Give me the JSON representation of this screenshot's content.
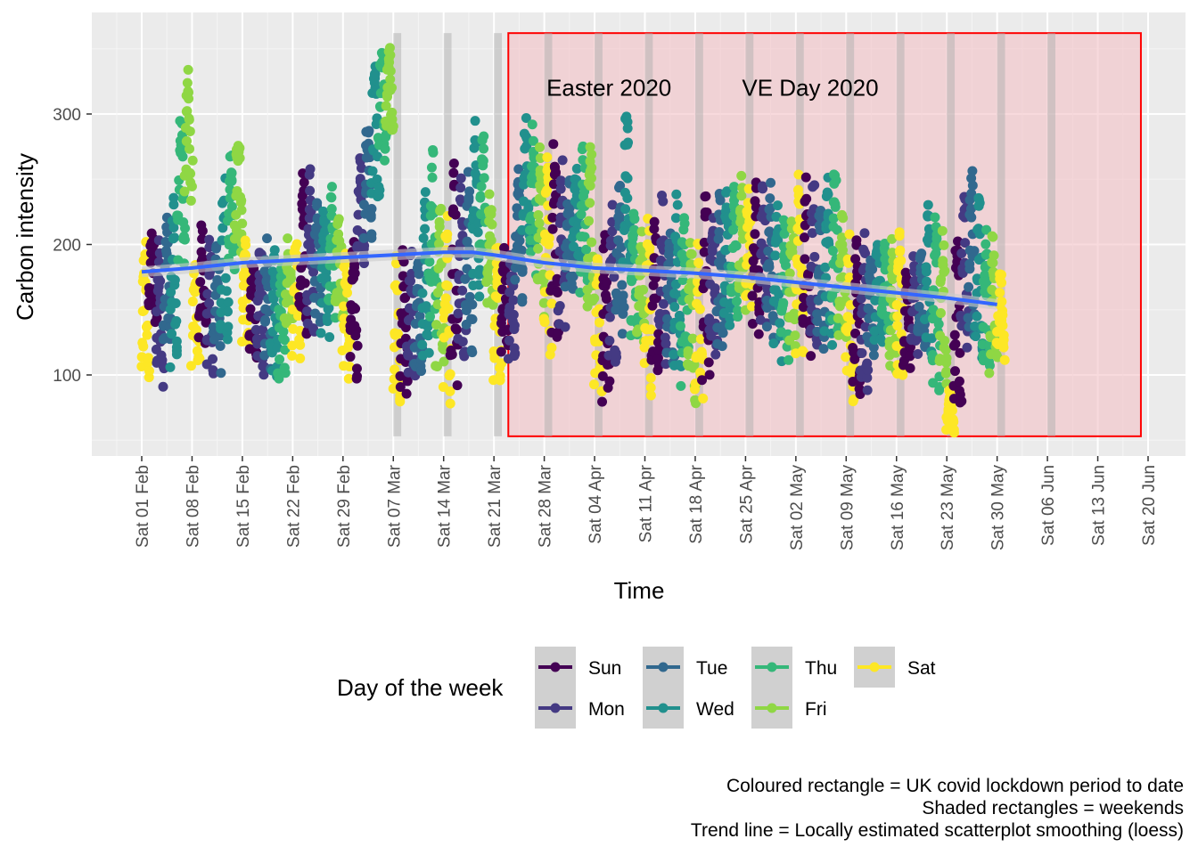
{
  "chart_data": {
    "type": "scatter",
    "xlabel": "Time",
    "ylabel": "Carbon intensity",
    "xlim": [
      "2020-01-27",
      "2020-06-21"
    ],
    "ylim": [
      40,
      370
    ],
    "y_ticks": [
      100,
      200,
      300
    ],
    "x_ticks": [
      {
        "date": "2020-02-01",
        "label": "Sat 01 Feb"
      },
      {
        "date": "2020-02-08",
        "label": "Sat 08 Feb"
      },
      {
        "date": "2020-02-15",
        "label": "Sat 15 Feb"
      },
      {
        "date": "2020-02-22",
        "label": "Sat 22 Feb"
      },
      {
        "date": "2020-02-29",
        "label": "Sat 29 Feb"
      },
      {
        "date": "2020-03-07",
        "label": "Sat 07 Mar"
      },
      {
        "date": "2020-03-14",
        "label": "Sat 14 Mar"
      },
      {
        "date": "2020-03-21",
        "label": "Sat 21 Mar"
      },
      {
        "date": "2020-03-28",
        "label": "Sat 28 Mar"
      },
      {
        "date": "2020-04-04",
        "label": "Sat 04 Apr"
      },
      {
        "date": "2020-04-11",
        "label": "Sat 11 Apr"
      },
      {
        "date": "2020-04-18",
        "label": "Sat 18 Apr"
      },
      {
        "date": "2020-04-25",
        "label": "Sat 25 Apr"
      },
      {
        "date": "2020-05-02",
        "label": "Sat 02 May"
      },
      {
        "date": "2020-05-09",
        "label": "Sat 09 May"
      },
      {
        "date": "2020-05-16",
        "label": "Sat 16 May"
      },
      {
        "date": "2020-05-23",
        "label": "Sat 23 May"
      },
      {
        "date": "2020-05-30",
        "label": "Sat 30 May"
      },
      {
        "date": "2020-06-06",
        "label": "Sat 06 Jun"
      },
      {
        "date": "2020-06-13",
        "label": "Sat 13 Jun"
      },
      {
        "date": "2020-06-20",
        "label": "Sat 20 Jun"
      }
    ],
    "grid": true,
    "lockdown_period": {
      "start": "2020-03-23",
      "end": "2020-06-19",
      "ymin": 53,
      "ymax": 362,
      "fill": "#f4c2c6",
      "border": "#ff0000"
    },
    "weekend_shading": {
      "ymin": 53,
      "ymax": 362,
      "color": "#b0b0b0",
      "starts": [
        "2020-03-07",
        "2020-03-14",
        "2020-03-21",
        "2020-03-28",
        "2020-04-04",
        "2020-04-11",
        "2020-04-18",
        "2020-04-25",
        "2020-05-02",
        "2020-05-09",
        "2020-05-16",
        "2020-05-23",
        "2020-05-30",
        "2020-06-06"
      ]
    },
    "annotations": [
      {
        "text": "Easter 2020",
        "date": "2020-04-06",
        "y": 320
      },
      {
        "text": "VE Day 2020",
        "date": "2020-05-04",
        "y": 320
      }
    ],
    "series": [
      {
        "name": "Sun",
        "color": "#440154"
      },
      {
        "name": "Mon",
        "color": "#443a83"
      },
      {
        "name": "Tue",
        "color": "#31688e"
      },
      {
        "name": "Wed",
        "color": "#21908d"
      },
      {
        "name": "Thu",
        "color": "#35b779"
      },
      {
        "name": "Fri",
        "color": "#8fd744"
      },
      {
        "name": "Sat",
        "color": "#fde725"
      }
    ],
    "daily_ranges": {
      "start": "2020-02-01",
      "comment_free": true,
      "ranges": [
        [
          95,
          205
        ],
        [
          140,
          215
        ],
        [
          90,
          210
        ],
        [
          110,
          225
        ],
        [
          100,
          250
        ],
        [
          180,
          310
        ],
        [
          230,
          340
        ],
        [
          100,
          195
        ],
        [
          110,
          225
        ],
        [
          100,
          210
        ],
        [
          100,
          205
        ],
        [
          110,
          265
        ],
        [
          175,
          275
        ],
        [
          190,
          290
        ],
        [
          120,
          205
        ],
        [
          110,
          200
        ],
        [
          95,
          205
        ],
        [
          95,
          215
        ],
        [
          95,
          200
        ],
        [
          90,
          190
        ],
        [
          130,
          210
        ],
        [
          110,
          210
        ],
        [
          120,
          260
        ],
        [
          130,
          265
        ],
        [
          140,
          240
        ],
        [
          120,
          245
        ],
        [
          140,
          245
        ],
        [
          140,
          230
        ],
        [
          95,
          205
        ],
        [
          95,
          205
        ],
        [
          170,
          280
        ],
        [
          200,
          295
        ],
        [
          230,
          355
        ],
        [
          260,
          360
        ],
        [
          285,
          355
        ],
        [
          75,
          200
        ],
        [
          80,
          205
        ],
        [
          85,
          200
        ],
        [
          90,
          195
        ],
        [
          100,
          250
        ],
        [
          120,
          280
        ],
        [
          95,
          250
        ],
        [
          70,
          240
        ],
        [
          80,
          285
        ],
        [
          100,
          255
        ],
        [
          110,
          260
        ],
        [
          150,
          300
        ],
        [
          170,
          300
        ],
        [
          150,
          240
        ],
        [
          85,
          200
        ],
        [
          110,
          205
        ],
        [
          110,
          200
        ],
        [
          150,
          260
        ],
        [
          190,
          305
        ],
        [
          170,
          295
        ],
        [
          140,
          290
        ],
        [
          110,
          290
        ],
        [
          120,
          290
        ],
        [
          130,
          275
        ],
        [
          160,
          250
        ],
        [
          180,
          260
        ],
        [
          150,
          285
        ],
        [
          130,
          285
        ],
        [
          80,
          210
        ],
        [
          75,
          215
        ],
        [
          100,
          240
        ],
        [
          130,
          250
        ],
        [
          160,
          315
        ],
        [
          120,
          235
        ],
        [
          120,
          215
        ],
        [
          80,
          225
        ],
        [
          90,
          220
        ],
        [
          100,
          240
        ],
        [
          100,
          225
        ],
        [
          85,
          245
        ],
        [
          80,
          245
        ],
        [
          75,
          235
        ],
        [
          75,
          225
        ],
        [
          90,
          250
        ],
        [
          100,
          235
        ],
        [
          110,
          245
        ],
        [
          130,
          255
        ],
        [
          140,
          250
        ],
        [
          145,
          255
        ],
        [
          140,
          250
        ],
        [
          130,
          255
        ],
        [
          130,
          255
        ],
        [
          120,
          250
        ],
        [
          110,
          240
        ],
        [
          110,
          225
        ],
        [
          115,
          220
        ],
        [
          110,
          260
        ],
        [
          110,
          260
        ],
        [
          110,
          250
        ],
        [
          110,
          240
        ],
        [
          120,
          255
        ],
        [
          120,
          275
        ],
        [
          120,
          230
        ],
        [
          75,
          215
        ],
        [
          80,
          210
        ],
        [
          85,
          210
        ],
        [
          110,
          205
        ],
        [
          120,
          205
        ],
        [
          125,
          205
        ],
        [
          95,
          210
        ],
        [
          95,
          215
        ],
        [
          95,
          190
        ],
        [
          110,
          195
        ],
        [
          115,
          200
        ],
        [
          110,
          240
        ],
        [
          80,
          230
        ],
        [
          65,
          225
        ],
        [
          55,
          90
        ],
        [
          65,
          220
        ],
        [
          110,
          250
        ],
        [
          120,
          260
        ],
        [
          110,
          240
        ],
        [
          100,
          225
        ],
        [
          95,
          210
        ],
        [
          110,
          180
        ]
      ]
    },
    "trend": {
      "name": "loess",
      "color": "#3366ff",
      "points": [
        [
          "2020-02-01",
          179
        ],
        [
          "2020-02-08",
          182
        ],
        [
          "2020-02-15",
          186
        ],
        [
          "2020-02-22",
          188
        ],
        [
          "2020-02-29",
          190
        ],
        [
          "2020-03-07",
          192
        ],
        [
          "2020-03-14",
          194
        ],
        [
          "2020-03-18",
          194
        ],
        [
          "2020-03-21",
          192
        ],
        [
          "2020-03-28",
          186
        ],
        [
          "2020-04-04",
          182
        ],
        [
          "2020-04-11",
          180
        ],
        [
          "2020-04-18",
          178
        ],
        [
          "2020-04-25",
          175
        ],
        [
          "2020-05-02",
          171
        ],
        [
          "2020-05-09",
          167
        ],
        [
          "2020-05-16",
          163
        ],
        [
          "2020-05-23",
          159
        ],
        [
          "2020-05-30",
          154
        ]
      ]
    },
    "legend": {
      "title": "Day of the week",
      "position": "bottom",
      "items": [
        "Sun",
        "Mon",
        "Tue",
        "Wed",
        "Thu",
        "Fri",
        "Sat"
      ]
    },
    "caption": [
      "Coloured rectangle = UK covid lockdown period to date",
      "Shaded rectangles = weekends",
      "Trend line = Locally estimated scatterplot smoothing (loess)"
    ]
  }
}
